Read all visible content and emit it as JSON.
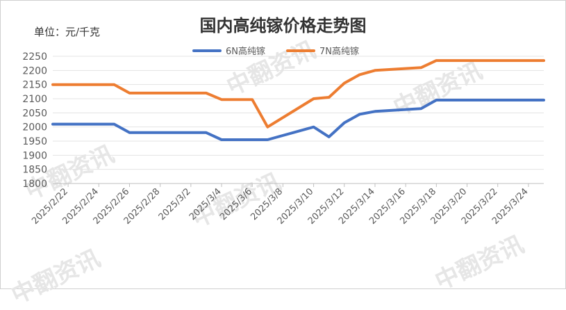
{
  "chart_data": {
    "type": "line",
    "title": "国内高纯镓价格走势图",
    "ylabel": "单位：元/千克",
    "ylim": [
      1800,
      2250
    ],
    "yticks": [
      1800,
      1850,
      1900,
      1950,
      2000,
      2050,
      2100,
      2150,
      2200,
      2250
    ],
    "x": [
      "2025/2/21",
      "2025/2/24",
      "2025/2/25",
      "2025/2/26",
      "2025/2/27",
      "2025/2/28",
      "2025/3/3",
      "2025/3/4",
      "2025/3/5",
      "2025/3/6",
      "2025/3/7",
      "2025/3/10",
      "2025/3/11",
      "2025/3/12",
      "2025/3/13",
      "2025/3/14",
      "2025/3/17",
      "2025/3/18",
      "2025/3/19",
      "2025/3/20",
      "2025/3/21",
      "2025/3/24",
      "2025/3/25"
    ],
    "xticks": [
      "2025/2/22",
      "2025/2/24",
      "2025/2/26",
      "2025/2/28",
      "2025/3/2",
      "2025/3/4",
      "2025/3/6",
      "2025/3/8",
      "2025/3/10",
      "2025/3/12",
      "2025/3/14",
      "2025/3/16",
      "2025/3/18",
      "2025/3/20",
      "2025/3/22",
      "2025/3/24"
    ],
    "series": [
      {
        "name": "6N高纯镓",
        "color": "#4472C4",
        "values": [
          2010,
          2010,
          2010,
          1980,
          1980,
          1980,
          1980,
          1955,
          1955,
          1955,
          1955,
          2000,
          1965,
          2015,
          2045,
          2055,
          2065,
          2095,
          2095,
          2095,
          2095,
          2095,
          2095
        ]
      },
      {
        "name": "7N高纯镓",
        "color": "#ED7D31",
        "values": [
          2150,
          2150,
          2150,
          2120,
          2120,
          2120,
          2120,
          2097,
          2097,
          2097,
          2000,
          2100,
          2105,
          2155,
          2185,
          2200,
          2210,
          2235,
          2235,
          2235,
          2235,
          2235,
          2235
        ]
      }
    ],
    "grid": true,
    "legend": "top"
  },
  "watermark": "中翻资讯"
}
